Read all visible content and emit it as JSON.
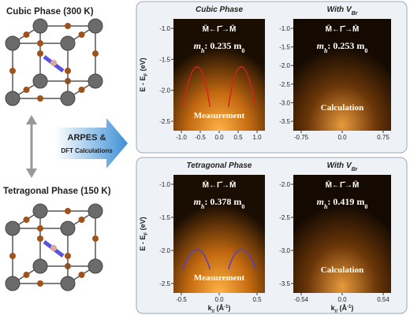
{
  "structures": [
    {
      "label": "Cubic Phase (300 K)"
    },
    {
      "label": "Tetragonal Phase (150 K)"
    }
  ],
  "arrow": {
    "lines": [
      "ARPES &",
      "DFT Calculations"
    ]
  },
  "y_label": {
    "main": "E - E",
    "sub": "F",
    "rest": " (eV)"
  },
  "x_label": {
    "main": "k",
    "sub": "//",
    "rest": " (Å",
    "sup": "-1",
    "end": ")"
  },
  "rows": [
    {
      "panels": [
        {
          "title_main": "Cubic Phase",
          "path": "M̄←Γ̄→M̄",
          "mass": {
            "m": "m",
            "sub": "h",
            "text": ": 0.235 m",
            "unit": "0"
          },
          "tag": "Measurement",
          "yticks": [
            "-1.0",
            "-1.5",
            "-2.0",
            "-2.5"
          ],
          "xticks": [
            "-1.0",
            "-0.5",
            "0.0",
            "0.5",
            "1.0"
          ]
        },
        {
          "title_main": "With V",
          "title_sub": "Br",
          "path": "M̄←Γ̄→M̄",
          "mass": {
            "m": "m",
            "sub": "h",
            "text": ": 0.253 m",
            "unit": "0"
          },
          "tag": "Calculation",
          "yticks": [
            "-1.0",
            "-1.5",
            "-2.0",
            "-2.5",
            "-3.0",
            "-3.5"
          ],
          "xticks": [
            "-0.75",
            "0.0",
            "0.75"
          ]
        }
      ]
    },
    {
      "panels": [
        {
          "title_main": "Tetragonal Phase",
          "path": "M̄←Γ̄→M̄",
          "mass": {
            "m": "m",
            "sub": "h",
            "text": ": 0.378 m",
            "unit": "0"
          },
          "tag": "Measurement",
          "yticks": [
            "-1.0",
            "-1.5",
            "-2.0",
            "-2.5"
          ],
          "xticks": [
            "-0.5",
            "0.0",
            "0.5"
          ]
        },
        {
          "title_main": "With V",
          "title_sub": "Br",
          "path": "M̄←Γ̄→M̄",
          "mass": {
            "m": "m",
            "sub": "h",
            "text": ": 0.419 m",
            "unit": "0"
          },
          "tag": "Calculation",
          "yticks": [
            "-2.0",
            "-2.5",
            "-3.0",
            "-3.5"
          ],
          "xticks": [
            "-0.54",
            "0.0",
            "0.54"
          ]
        }
      ]
    }
  ]
}
